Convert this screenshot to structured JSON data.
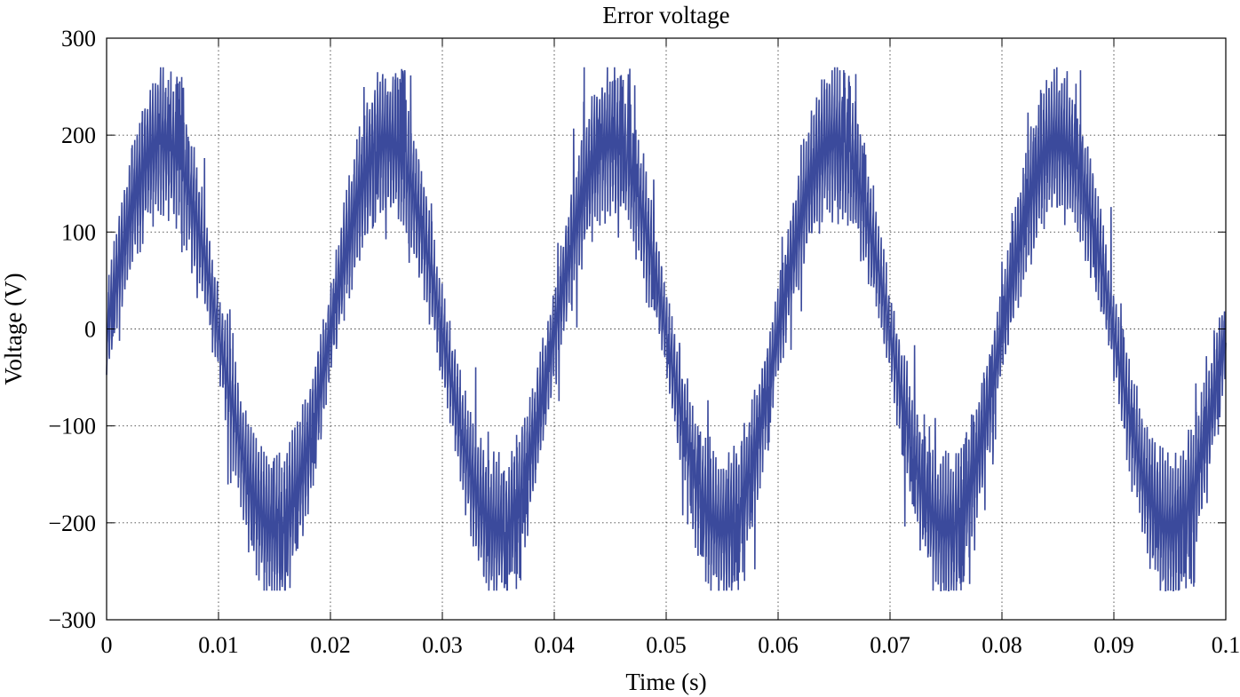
{
  "chart_data": {
    "type": "line",
    "title": "Error voltage",
    "xlabel": "Time (s)",
    "ylabel": "Voltage (V)",
    "xlim": [
      0,
      0.1
    ],
    "ylim": [
      -300,
      300
    ],
    "x_ticks": [
      0,
      0.01,
      0.02,
      0.03,
      0.04,
      0.05,
      0.06,
      0.07,
      0.08,
      0.09,
      0.1
    ],
    "x_tick_labels": [
      "0",
      "0.01",
      "0.02",
      "0.03",
      "0.04",
      "0.05",
      "0.06",
      "0.07",
      "0.08",
      "0.09",
      "0.1"
    ],
    "y_ticks": [
      -300,
      -200,
      -100,
      0,
      100,
      200,
      300
    ],
    "y_tick_labels": [
      "−300",
      "−200",
      "−100",
      "0",
      "100",
      "200",
      "300"
    ],
    "grid": true,
    "series": [
      {
        "color": "#3b4a9c",
        "description": "Fundamental sinusoid with heavy PWM switching ripple",
        "fundamental_frequency_hz": 50,
        "fundamental_amplitude": 200,
        "envelope_max": 270,
        "envelope_min": -270,
        "anchor_points": [
          {
            "x": 0.0,
            "y": 0
          },
          {
            "x": 0.005,
            "y": 200
          },
          {
            "x": 0.0065,
            "y": 270
          },
          {
            "x": 0.01,
            "y": 0
          },
          {
            "x": 0.015,
            "y": -200
          },
          {
            "x": 0.017,
            "y": -265
          },
          {
            "x": 0.02,
            "y": 0
          },
          {
            "x": 0.025,
            "y": 200
          },
          {
            "x": 0.027,
            "y": 268
          },
          {
            "x": 0.03,
            "y": 0
          },
          {
            "x": 0.035,
            "y": -200
          },
          {
            "x": 0.037,
            "y": -268
          },
          {
            "x": 0.04,
            "y": 0
          },
          {
            "x": 0.045,
            "y": 200
          },
          {
            "x": 0.047,
            "y": 270
          },
          {
            "x": 0.05,
            "y": 0
          },
          {
            "x": 0.055,
            "y": -200
          },
          {
            "x": 0.057,
            "y": -268
          },
          {
            "x": 0.06,
            "y": 0
          },
          {
            "x": 0.065,
            "y": 200
          },
          {
            "x": 0.067,
            "y": 268
          },
          {
            "x": 0.07,
            "y": 0
          },
          {
            "x": 0.075,
            "y": -200
          },
          {
            "x": 0.077,
            "y": -265
          },
          {
            "x": 0.08,
            "y": 0
          },
          {
            "x": 0.085,
            "y": 200
          },
          {
            "x": 0.087,
            "y": 270
          },
          {
            "x": 0.09,
            "y": 0
          },
          {
            "x": 0.095,
            "y": -200
          },
          {
            "x": 0.097,
            "y": -268
          },
          {
            "x": 0.1,
            "y": 0
          }
        ]
      }
    ]
  }
}
